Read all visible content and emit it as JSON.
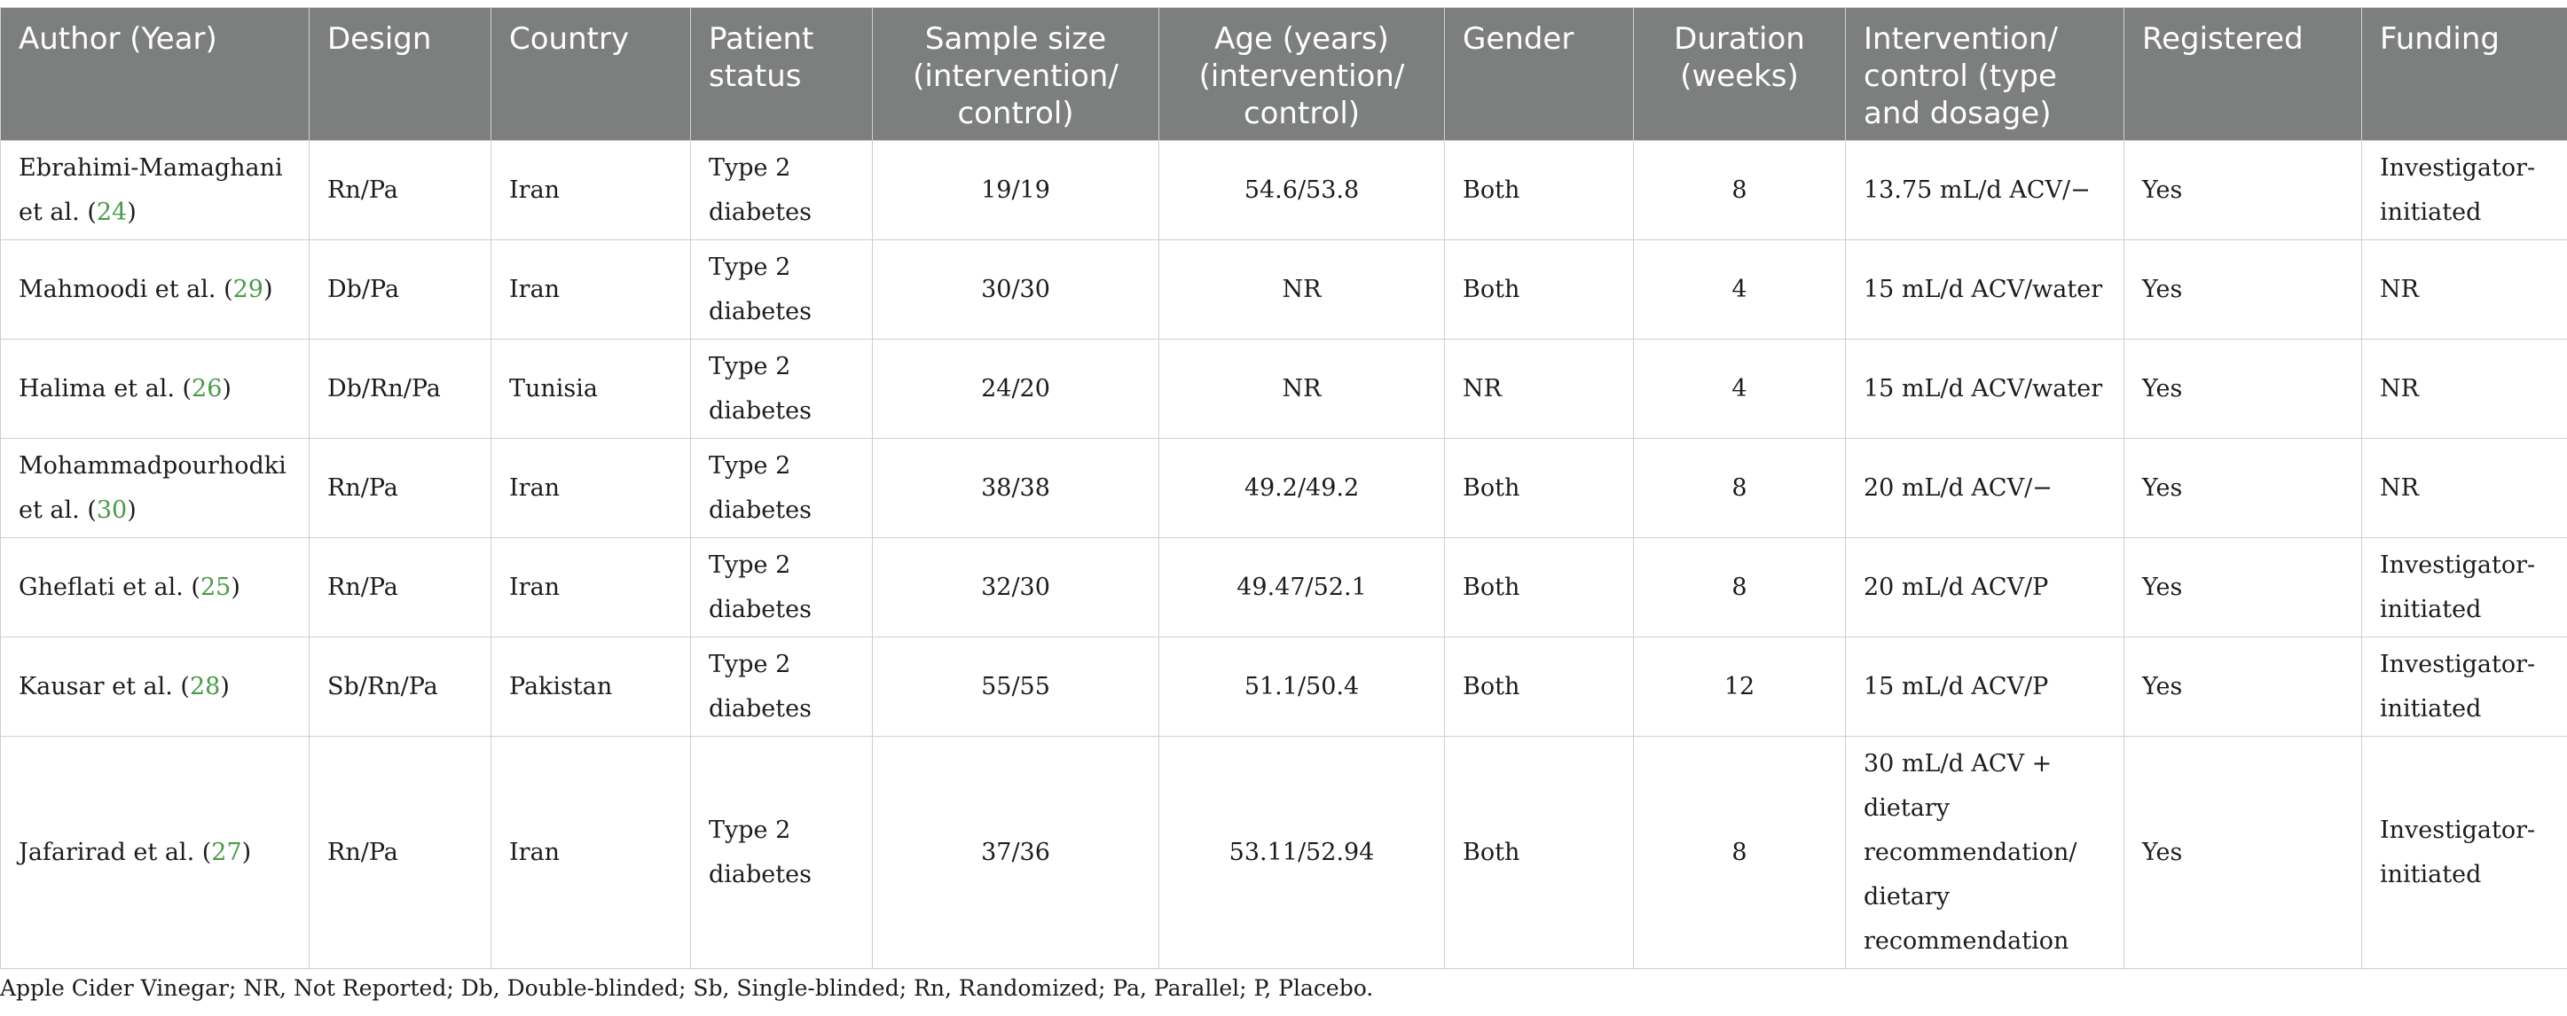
{
  "table": {
    "headers": [
      {
        "label": "Author (Year)",
        "align": "left"
      },
      {
        "label": "Design",
        "align": "left"
      },
      {
        "label": "Country",
        "align": "left"
      },
      {
        "label": "Patient status",
        "align": "left"
      },
      {
        "label": "Sample size (intervention/ control)",
        "align": "center"
      },
      {
        "label": "Age (years) (intervention/ control)",
        "align": "center"
      },
      {
        "label": "Gender",
        "align": "left"
      },
      {
        "label": "Duration (weeks)",
        "align": "center"
      },
      {
        "label": "Intervention/ control (type and dosage)",
        "align": "left"
      },
      {
        "label": "Registered",
        "align": "left"
      },
      {
        "label": "Funding",
        "align": "left"
      }
    ],
    "rows": [
      {
        "author": "Ebrahimi-Mamaghani et al.",
        "ref": "24",
        "design": "Rn/Pa",
        "country": "Iran",
        "status": "Type 2 diabetes",
        "sample": "19/19",
        "age": "54.6/53.8",
        "gender": "Both",
        "duration": "8",
        "intervention": "13.75 mL/d ACV/−",
        "registered": "Yes",
        "funding": "Investigator-initiated"
      },
      {
        "author": "Mahmoodi et al.",
        "ref": "29",
        "design": "Db/Pa",
        "country": "Iran",
        "status": "Type 2 diabetes",
        "sample": "30/30",
        "age": "NR",
        "gender": "Both",
        "duration": "4",
        "intervention": "15 mL/d ACV/water",
        "registered": "Yes",
        "funding": "NR"
      },
      {
        "author": "Halima et al.",
        "ref": "26",
        "design": "Db/Rn/Pa",
        "country": "Tunisia",
        "status": "Type 2 diabetes",
        "sample": "24/20",
        "age": "NR",
        "gender": "NR",
        "duration": "4",
        "intervention": "15 mL/d ACV/water",
        "registered": "Yes",
        "funding": "NR"
      },
      {
        "author": "Mohammadpourhodki et al.",
        "ref": "30",
        "design": "Rn/Pa",
        "country": "Iran",
        "status": "Type 2 diabetes",
        "sample": "38/38",
        "age": "49.2/49.2",
        "gender": "Both",
        "duration": "8",
        "intervention": "20 mL/d ACV/−",
        "registered": "Yes",
        "funding": "NR"
      },
      {
        "author": "Gheflati et al.",
        "ref": "25",
        "design": "Rn/Pa",
        "country": "Iran",
        "status": "Type 2 diabetes",
        "sample": "32/30",
        "age": "49.47/52.1",
        "gender": "Both",
        "duration": "8",
        "intervention": "20 mL/d ACV/P",
        "registered": "Yes",
        "funding": "Investigator-initiated"
      },
      {
        "author": "Kausar et al.",
        "ref": "28",
        "design": "Sb/Rn/Pa",
        "country": "Pakistan",
        "status": "Type 2 diabetes",
        "sample": "55/55",
        "age": "51.1/50.4",
        "gender": "Both",
        "duration": "12",
        "intervention": "15 mL/d ACV/P",
        "registered": "Yes",
        "funding": "Investigator-initiated"
      },
      {
        "author": "Jafarirad et al.",
        "ref": "27",
        "design": "Rn/Pa",
        "country": "Iran",
        "status": "Type 2 diabetes",
        "sample": "37/36",
        "age": "53.11/52.94",
        "gender": "Both",
        "duration": "8",
        "intervention": "30 mL/d ACV + dietary recommendation/ dietary recommendation",
        "registered": "Yes",
        "funding": "Investigator-initiated"
      }
    ]
  },
  "footnote": "Apple Cider Vinegar; NR, Not Reported; Db, Double-blinded; Sb, Single-blinded; Rn, Randomized; Pa, Parallel; P, Placebo.",
  "colors": {
    "header_bg": "#7d7f7e",
    "header_text": "#ffffff",
    "reference_link": "#4a9a4a",
    "border": "#cfcfcf"
  }
}
